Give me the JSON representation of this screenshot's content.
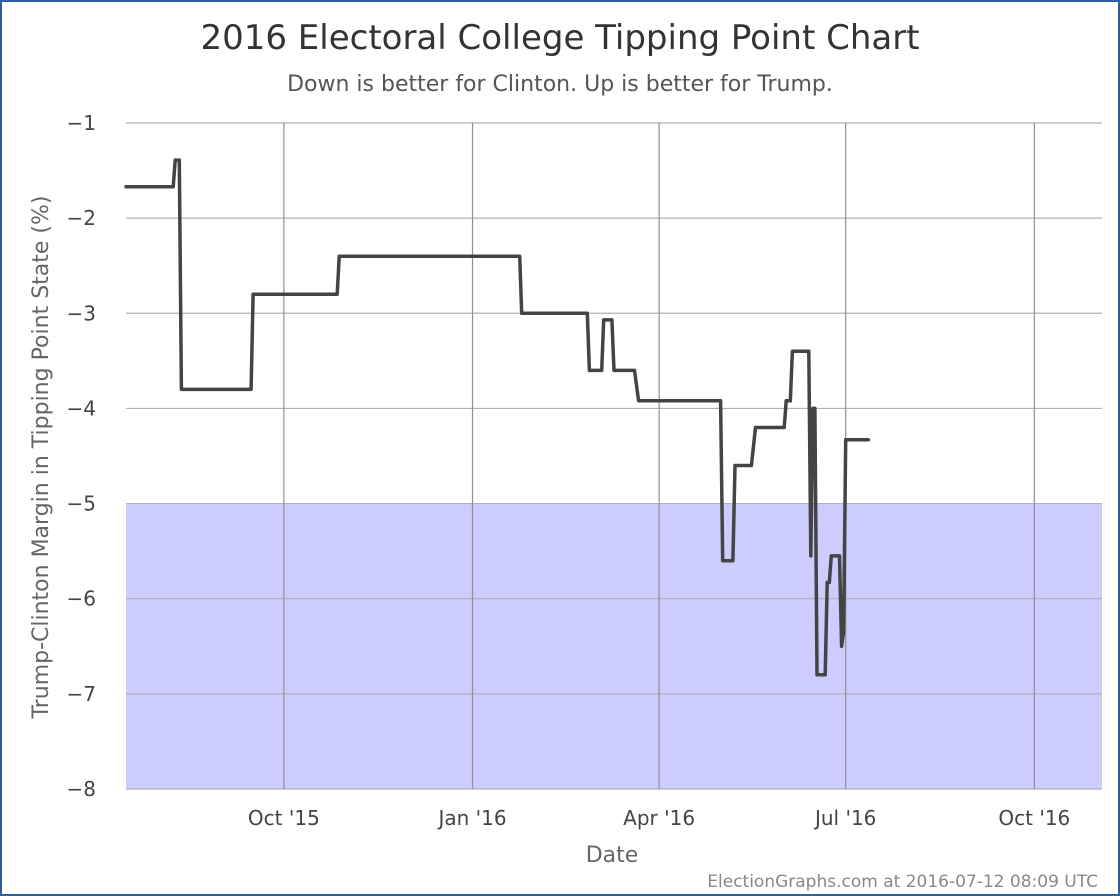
{
  "chart_data": {
    "type": "line",
    "title": "2016 Electoral College Tipping Point Chart",
    "subtitle": "Down is better for Clinton. Up is better for Trump.",
    "xlabel": "Date",
    "ylabel": "Trump-Clinton Margin in Tipping Point State (%)",
    "ylim": [
      -8,
      -1
    ],
    "xlim": [
      "2015-07-16",
      "2016-11-03"
    ],
    "y_ticks": [
      -1,
      -2,
      -3,
      -4,
      -5,
      -6,
      -7,
      -8
    ],
    "x_ticks": [
      {
        "date": "2015-10-01",
        "label": "Oct '15"
      },
      {
        "date": "2016-01-01",
        "label": "Jan '16"
      },
      {
        "date": "2016-04-01",
        "label": "Apr '16"
      },
      {
        "date": "2016-07-01",
        "label": "Jul '16"
      },
      {
        "date": "2016-10-01",
        "label": "Oct '16"
      }
    ],
    "grid": true,
    "shaded_band": {
      "from": -8,
      "to": -5,
      "color": "#ccccff"
    },
    "line_color": "#444444",
    "series": [
      {
        "points": [
          [
            "2015-07-16",
            -1.67
          ],
          [
            "2015-08-08",
            -1.67
          ],
          [
            "2015-08-09",
            -1.39
          ],
          [
            "2015-08-11",
            -1.39
          ],
          [
            "2015-08-12",
            -3.8
          ],
          [
            "2015-09-15",
            -3.8
          ],
          [
            "2015-09-16",
            -2.8
          ],
          [
            "2015-10-27",
            -2.8
          ],
          [
            "2015-10-28",
            -2.4
          ],
          [
            "2016-01-24",
            -2.4
          ],
          [
            "2016-01-25",
            -3.0
          ],
          [
            "2016-02-26",
            -3.0
          ],
          [
            "2016-02-27",
            -3.6
          ],
          [
            "2016-03-04",
            -3.6
          ],
          [
            "2016-03-05",
            -3.07
          ],
          [
            "2016-03-09",
            -3.07
          ],
          [
            "2016-03-10",
            -3.6
          ],
          [
            "2016-03-20",
            -3.6
          ],
          [
            "2016-03-22",
            -3.92
          ],
          [
            "2016-05-01",
            -3.92
          ],
          [
            "2016-05-02",
            -5.6
          ],
          [
            "2016-05-07",
            -5.6
          ],
          [
            "2016-05-08",
            -4.6
          ],
          [
            "2016-05-16",
            -4.6
          ],
          [
            "2016-05-18",
            -4.2
          ],
          [
            "2016-06-01",
            -4.2
          ],
          [
            "2016-06-02",
            -3.92
          ],
          [
            "2016-06-04",
            -3.92
          ],
          [
            "2016-06-05",
            -3.4
          ],
          [
            "2016-06-13",
            -3.4
          ],
          [
            "2016-06-14",
            -5.55
          ],
          [
            "2016-06-15",
            -4.0
          ],
          [
            "2016-06-16",
            -4.0
          ],
          [
            "2016-06-17",
            -6.8
          ],
          [
            "2016-06-21",
            -6.8
          ],
          [
            "2016-06-22",
            -5.83
          ],
          [
            "2016-06-23",
            -5.83
          ],
          [
            "2016-06-24",
            -5.55
          ],
          [
            "2016-06-28",
            -5.55
          ],
          [
            "2016-06-29",
            -6.5
          ],
          [
            "2016-06-30",
            -6.35
          ],
          [
            "2016-07-01",
            -4.33
          ],
          [
            "2016-07-12",
            -4.33
          ]
        ]
      }
    ]
  },
  "credit": "ElectionGraphs.com at 2016-07-12 08:09 UTC"
}
